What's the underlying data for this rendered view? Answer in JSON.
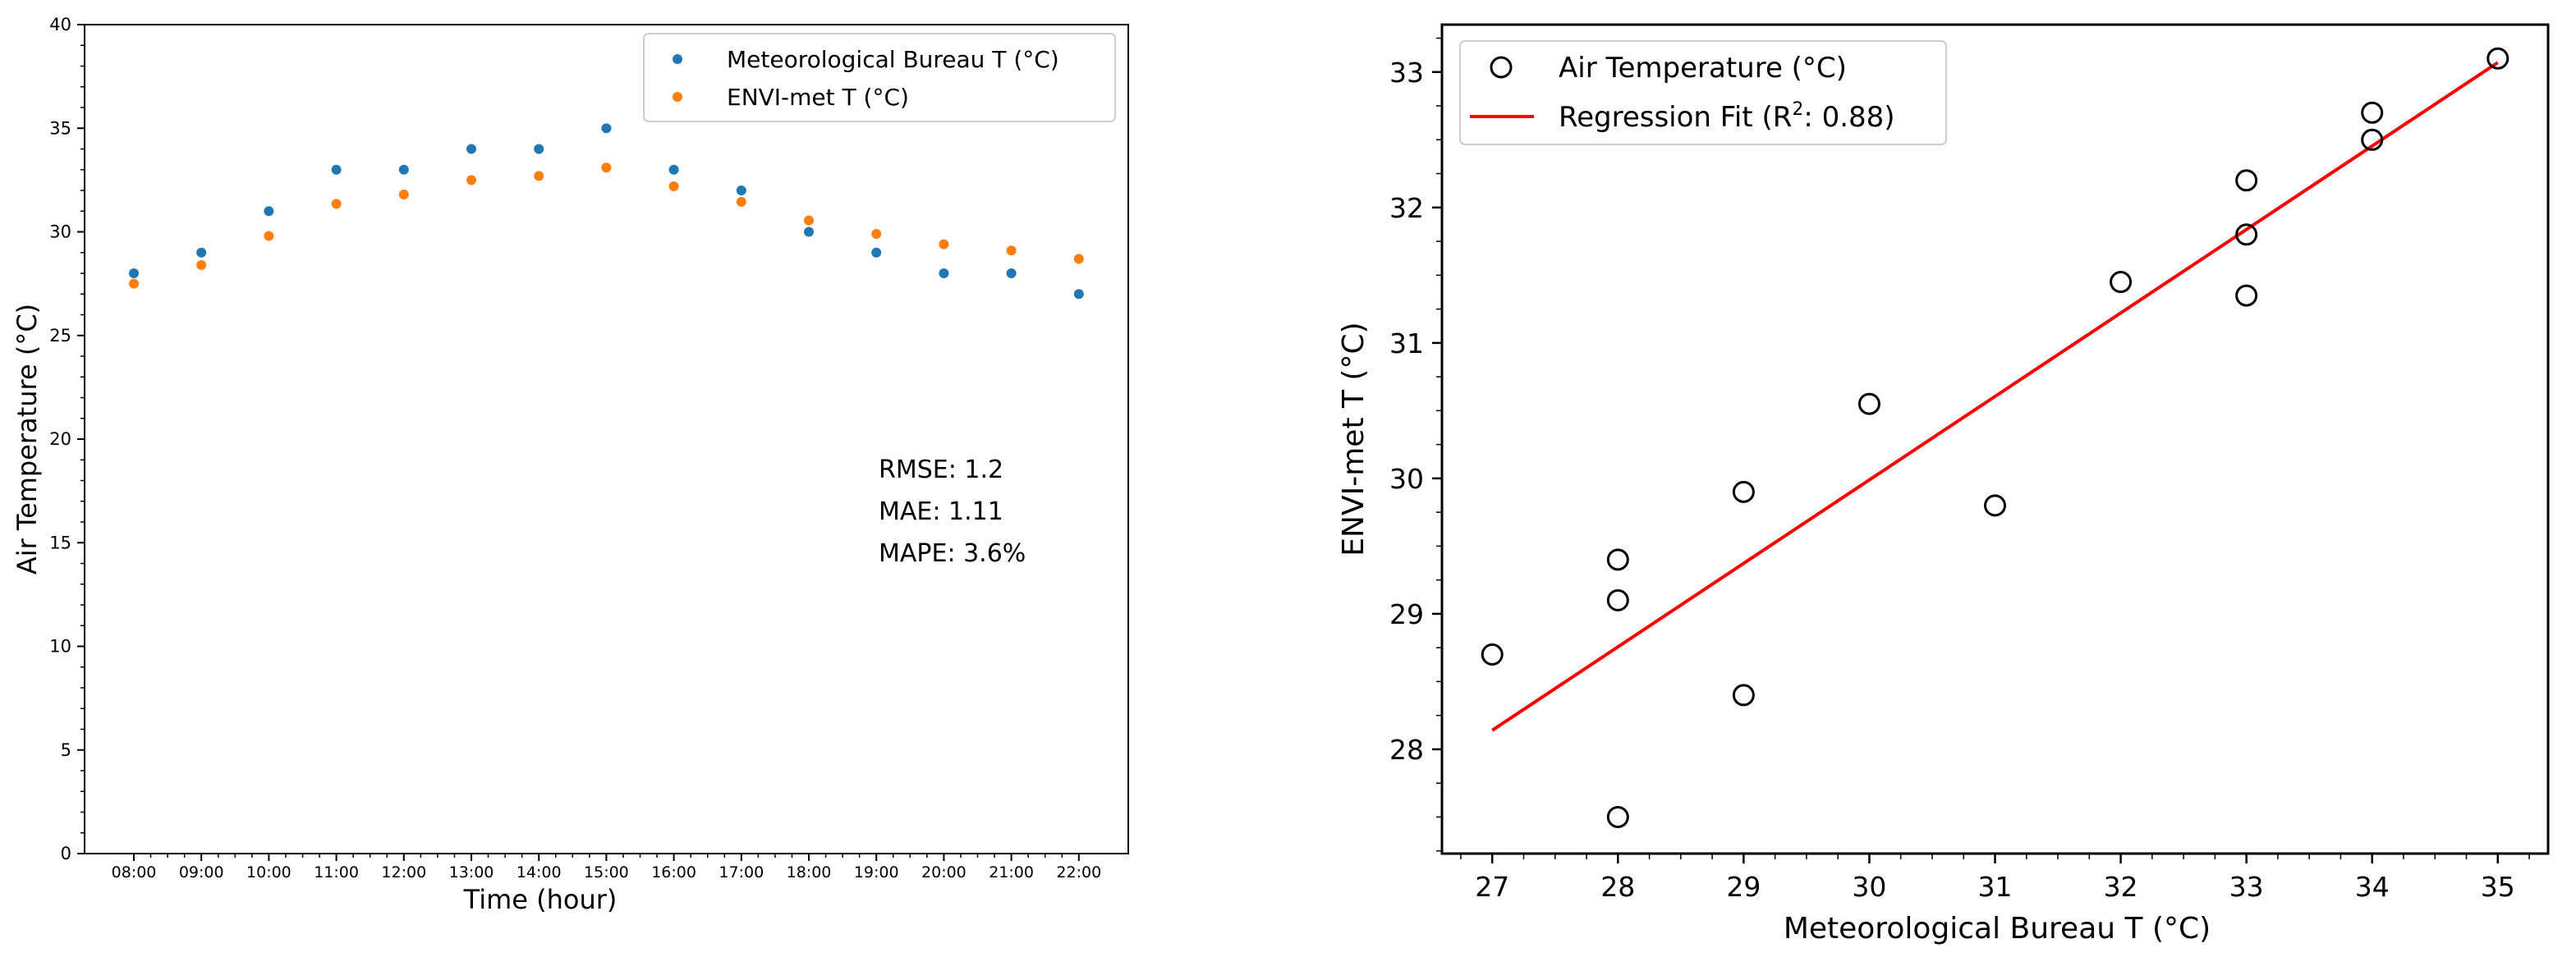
{
  "chart_data": [
    {
      "type": "scatter",
      "title": "",
      "xlabel": "Time (hour)",
      "ylabel": "Air Temperature (°C)",
      "ylim": [
        0,
        40
      ],
      "yticks": [
        0,
        5,
        10,
        15,
        20,
        25,
        30,
        35,
        40
      ],
      "categories": [
        "08:00",
        "09:00",
        "10:00",
        "11:00",
        "12:00",
        "13:00",
        "14:00",
        "15:00",
        "16:00",
        "17:00",
        "18:00",
        "19:00",
        "20:00",
        "21:00",
        "22:00"
      ],
      "series": [
        {
          "name": "Meteorological Bureau T (°C)",
          "color": "#1f77b4",
          "values": [
            28,
            29,
            31,
            33,
            33,
            34,
            34,
            35,
            33,
            32,
            30,
            29,
            28,
            28,
            27
          ]
        },
        {
          "name": "ENVI-met T (°C)",
          "color": "#ff7f0e",
          "values": [
            27.5,
            28.4,
            29.8,
            31.35,
            31.8,
            32.5,
            32.7,
            33.1,
            32.2,
            31.45,
            30.55,
            29.9,
            29.4,
            29.1,
            28.7
          ]
        }
      ],
      "legend_position": "top-right",
      "annotations": [
        "RMSE: 1.2",
        "MAE: 1.11",
        "MAPE: 3.6%"
      ]
    },
    {
      "type": "scatter",
      "title": "",
      "xlabel": "Meteorological Bureau T (°C)",
      "ylabel": "ENVI-met T (°C)",
      "xlim": [
        26.6,
        35.4
      ],
      "ylim": [
        27.23,
        33.35
      ],
      "xticks": [
        27,
        28,
        29,
        30,
        31,
        32,
        33,
        34,
        35
      ],
      "yticks": [
        28,
        29,
        30,
        31,
        32,
        33
      ],
      "series": [
        {
          "name": "Air Temperature (°C)",
          "marker": "open-circle",
          "color": "#000000",
          "points": [
            [
              27,
              28.7
            ],
            [
              28,
              27.5
            ],
            [
              28,
              29.1
            ],
            [
              28,
              29.4
            ],
            [
              29,
              28.4
            ],
            [
              29,
              29.9
            ],
            [
              30,
              30.55
            ],
            [
              31,
              29.8
            ],
            [
              32,
              31.45
            ],
            [
              33,
              31.35
            ],
            [
              33,
              31.8
            ],
            [
              33,
              32.2
            ],
            [
              34,
              32.5
            ],
            [
              34,
              32.7
            ],
            [
              35,
              33.1
            ]
          ]
        },
        {
          "name": "Regression Fit (R",
          "name_sup": "2",
          "name_suffix": ": 0.88)",
          "type": "line",
          "color": "#ff0000",
          "points": [
            [
              27,
              28.14
            ],
            [
              35,
              33.07
            ]
          ]
        }
      ],
      "legend_position": "top-left"
    }
  ]
}
